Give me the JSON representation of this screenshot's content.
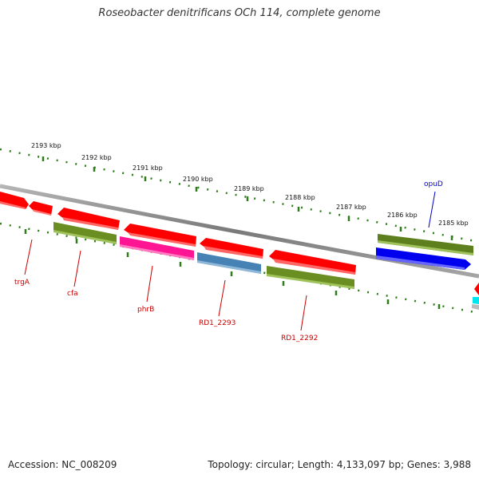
{
  "title": "Roseobacter denitrificans OCh 114, complete genome",
  "footer": {
    "accession": "Accession: NC_008209",
    "stats": "Topology: circular; Length: 4,133,097 bp; Genes: 3,988"
  },
  "ruler": {
    "labels": [
      "2193 kbp",
      "2192 kbp",
      "2191 kbp",
      "2190 kbp",
      "2189 kbp",
      "2188 kbp",
      "2187 kbp",
      "2186 kbp",
      "2185 kbp"
    ]
  },
  "genes": {
    "trgA": "trgA",
    "cfa": "cfa",
    "phrB": "phrB",
    "rd1_2293": "RD1_2293",
    "rd1_2292": "RD1_2292",
    "opuD": "opuD"
  },
  "colors": {
    "cds_red": "#ff0000",
    "cds_green": "#6b8e23",
    "cds_pink": "#ff1493",
    "cds_steel": "#4682b4",
    "cds_blue": "#0000ff",
    "cds_cyan": "#00ffff",
    "label_red": "#cc0000",
    "label_blue": "#0000cc",
    "tick_green": "#2e7d1a"
  }
}
